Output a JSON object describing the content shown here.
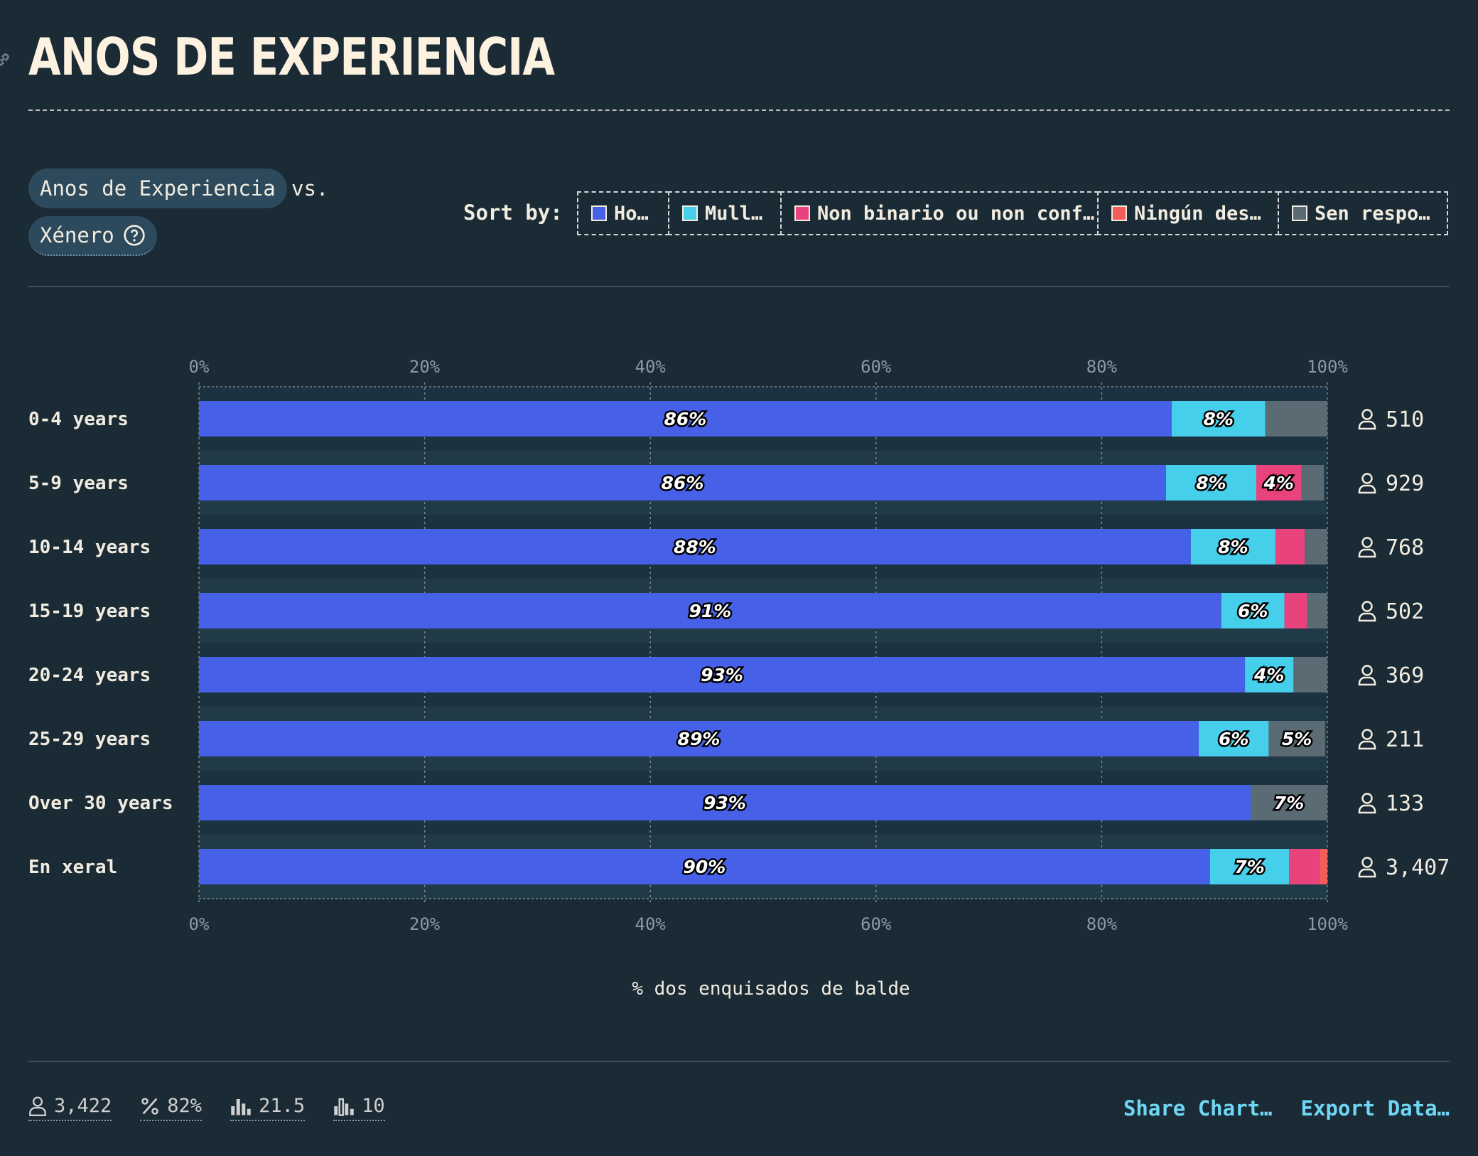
{
  "title": "ANOS DE EXPERIENCIA",
  "controls": {
    "variable_primary": "Anos de Experiencia",
    "vs_text": "vs.",
    "variable_secondary": "Xénero",
    "sort_label": "Sort by:"
  },
  "legend": [
    {
      "label": "Ho…",
      "color": "#4760e8"
    },
    {
      "label": "Mull…",
      "color": "#45cfeb"
    },
    {
      "label": "Non binario ou non conf…",
      "color": "#e9437d"
    },
    {
      "label": "Ningún des…",
      "color": "#f25d5a"
    },
    {
      "label": "Sen respo…",
      "color": "#5b6b74"
    }
  ],
  "chart_data": {
    "type": "bar",
    "orientation": "horizontal",
    "stacked": true,
    "xlabel": "% dos enquisados de balde",
    "xlim": [
      0,
      100
    ],
    "x_ticks": [
      "0%",
      "20%",
      "40%",
      "60%",
      "80%",
      "100%"
    ],
    "categories": [
      "0-4 years",
      "5-9 years",
      "10-14 years",
      "15-19 years",
      "20-24 years",
      "25-29 years",
      "Over 30 years",
      "En xeral"
    ],
    "counts": [
      "510",
      "929",
      "768",
      "502",
      "369",
      "211",
      "133",
      "3,407"
    ],
    "series": [
      {
        "color": "#4760e8",
        "values": [
          86.2,
          85.7,
          87.9,
          90.6,
          92.7,
          88.6,
          93.2,
          89.6
        ]
      },
      {
        "color": "#45cfeb",
        "values": [
          8.3,
          8.0,
          7.5,
          5.6,
          4.3,
          6.2,
          0,
          7.0
        ]
      },
      {
        "color": "#e9437d",
        "values": [
          0,
          4.0,
          2.6,
          2.0,
          0,
          0,
          0,
          2.7
        ]
      },
      {
        "color": "#f25d5a",
        "values": [
          0,
          0,
          0,
          0,
          0,
          0,
          0,
          0.7
        ]
      },
      {
        "color": "#5b6b74",
        "values": [
          5.5,
          2.0,
          2.0,
          1.8,
          3.0,
          5.0,
          6.8,
          0
        ]
      }
    ],
    "segment_labels": [
      [
        "86%",
        "8%",
        "",
        "",
        ""
      ],
      [
        "86%",
        "8%",
        "4%",
        "",
        ""
      ],
      [
        "88%",
        "8%",
        "",
        "",
        ""
      ],
      [
        "91%",
        "6%",
        "",
        "",
        ""
      ],
      [
        "93%",
        "4%",
        "",
        "",
        ""
      ],
      [
        "89%",
        "6%",
        "",
        "",
        "5%"
      ],
      [
        "93%",
        "",
        "",
        "",
        "7%"
      ],
      [
        "90%",
        "7%",
        "",
        "",
        ""
      ]
    ]
  },
  "footer": {
    "respondents": "3,422",
    "percent": "82%",
    "average": "21.5",
    "median": "10",
    "share_label": "Share Chart…",
    "export_label": "Export Data…"
  }
}
